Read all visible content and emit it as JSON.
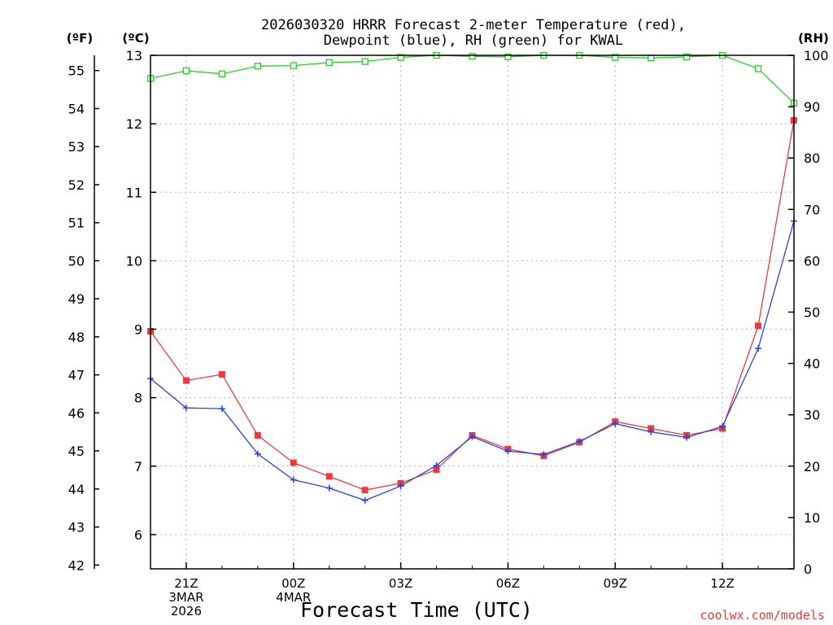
{
  "chart_data": {
    "type": "line",
    "title_line1": "2026030320 HRRR Forecast 2-meter Temperature (red),",
    "title_line2": "Dewpoint (blue), RH (green) for KWAL",
    "xlabel": "Forecast Time (UTC)",
    "credit": "coolwx.com/models",
    "units": {
      "fahrenheit": "(ºF)",
      "celsius": "(ºC)",
      "rh": "(RH)"
    },
    "x": [
      20,
      21,
      22,
      23,
      24,
      25,
      26,
      27,
      28,
      29,
      30,
      31,
      32,
      33,
      34,
      35,
      36,
      37,
      38
    ],
    "xlim": [
      20,
      38
    ],
    "x_ticks": [
      {
        "x": 21,
        "line1": "21Z",
        "line2": "3MAR",
        "line3": "2026"
      },
      {
        "x": 24,
        "line1": "00Z",
        "line2": "4MAR",
        "line3": ""
      },
      {
        "x": 27,
        "line1": "03Z",
        "line2": "",
        "line3": ""
      },
      {
        "x": 30,
        "line1": "06Z",
        "line2": "",
        "line3": ""
      },
      {
        "x": 33,
        "line1": "09Z",
        "line2": "",
        "line3": ""
      },
      {
        "x": 36,
        "line1": "12Z",
        "line2": "",
        "line3": ""
      }
    ],
    "ylim_celsius": [
      5.5,
      13
    ],
    "yticks_celsius": [
      "6",
      "7",
      "8",
      "9",
      "10",
      "11",
      "12",
      "13"
    ],
    "ylim_fahrenheit": [
      41.9,
      55.4
    ],
    "yticks_fahrenheit": [
      "42",
      "43",
      "44",
      "45",
      "46",
      "47",
      "48",
      "49",
      "50",
      "51",
      "52",
      "53",
      "54",
      "55"
    ],
    "ylim_rh": [
      0,
      100
    ],
    "yticks_rh": [
      "0",
      "10",
      "20",
      "30",
      "40",
      "50",
      "60",
      "70",
      "80",
      "90",
      "100"
    ],
    "series": [
      {
        "name": "Temperature",
        "axis": "celsius",
        "color": "#ee3a3f",
        "marker": "filled-square",
        "values": [
          8.97,
          8.25,
          8.34,
          7.45,
          7.05,
          6.85,
          6.65,
          6.75,
          6.95,
          7.45,
          7.25,
          7.15,
          7.35,
          7.65,
          7.55,
          7.45,
          7.55,
          9.05,
          12.05
        ]
      },
      {
        "name": "Dewpoint",
        "axis": "celsius",
        "color": "#2c42e0",
        "marker": "plus",
        "values": [
          8.28,
          7.85,
          7.84,
          7.18,
          6.8,
          6.68,
          6.5,
          6.71,
          7.01,
          7.43,
          7.22,
          7.17,
          7.36,
          7.62,
          7.5,
          7.42,
          7.58,
          8.72,
          10.58
        ]
      },
      {
        "name": "RH",
        "axis": "rh",
        "color": "#1fd21f",
        "marker": "open-square",
        "values": [
          95.5,
          97.0,
          96.4,
          97.9,
          98.0,
          98.6,
          98.8,
          99.6,
          100,
          99.8,
          99.7,
          100,
          100,
          99.6,
          99.5,
          99.7,
          100,
          97.4,
          90.7
        ]
      }
    ]
  }
}
